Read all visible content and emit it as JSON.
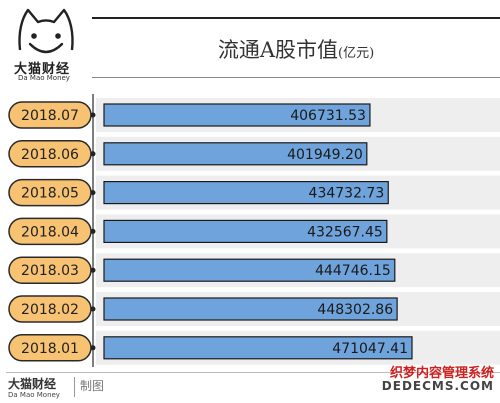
{
  "brand": {
    "name_cn": "大猫财经",
    "name_en": "Da Mao Money"
  },
  "title": {
    "main": "流通A股市值",
    "unit": "(亿元)"
  },
  "chart_data": {
    "type": "bar",
    "orientation": "horizontal",
    "categories": [
      "2018.07",
      "2018.06",
      "2018.05",
      "2018.04",
      "2018.03",
      "2018.02",
      "2018.01"
    ],
    "values": [
      406731.53,
      401949.2,
      434732.73,
      432567.45,
      444746.15,
      448302.86,
      471047.41
    ],
    "value_labels": [
      "406731.53",
      "401949.20",
      "434732.73",
      "432567.45",
      "444746.15",
      "448302.86",
      "471047.41"
    ],
    "title": "流通A股市值",
    "unit": "亿元",
    "colors": {
      "bar": "#6fa3dc",
      "bar_border": "#1a1a1a",
      "pill": "#f7c373",
      "row_band": "#eeeeee"
    }
  },
  "footer": {
    "brand_cn": "大猫财经",
    "brand_en": "Da Mao Money",
    "credit": "制图"
  },
  "watermark": {
    "line1": "织梦内容管理系统",
    "line2": "DEDECMS.COM"
  }
}
